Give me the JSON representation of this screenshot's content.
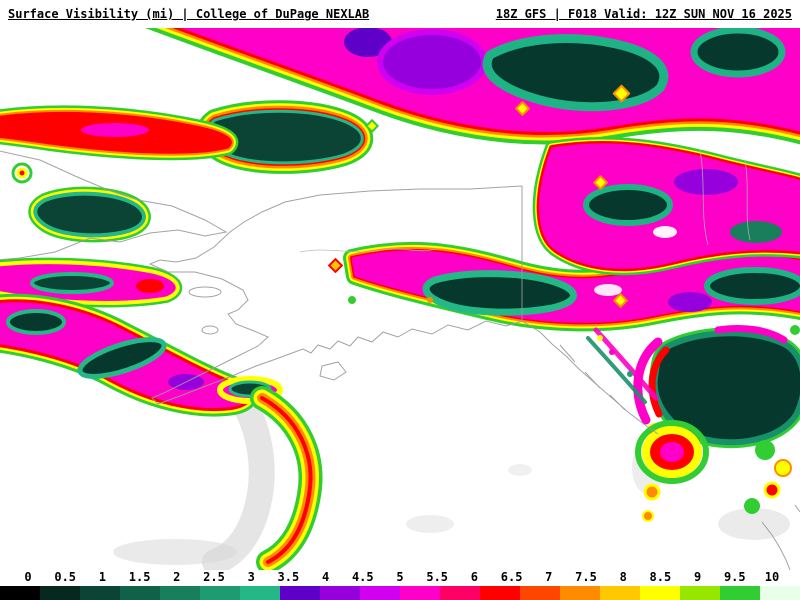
{
  "header": {
    "product_title": "Surface Visibility (mi) | College of DuPage NEXLAB",
    "model_info": "18Z GFS | F018 Valid: 12Z SUN NOV 16 2025"
  },
  "colorbar": {
    "units": "mi",
    "min": 0,
    "max": 10,
    "step": 0.5,
    "tick_labels": [
      "0",
      "0.5",
      "1",
      "1.5",
      "2",
      "2.5",
      "3",
      "3.5",
      "4",
      "4.5",
      "5",
      "5.5",
      "6",
      "6.5",
      "7",
      "7.5",
      "8",
      "8.5",
      "9",
      "9.5",
      "10"
    ],
    "segment_colors": [
      "#000000",
      "#06281f",
      "#0b4434",
      "#116048",
      "#187e5c",
      "#1e9b70",
      "#24b887",
      "#5f00c8",
      "#9600dc",
      "#d200f0",
      "#ff00c8",
      "#ff0064",
      "#ff0000",
      "#ff4600",
      "#ff8c00",
      "#ffc800",
      "#ffff00",
      "#96e600",
      "#32cd32",
      "#e8ffe8"
    ]
  },
  "map": {
    "palette": {
      "clear": "#ffffff",
      "fringe_green": "#32cd32",
      "yellow": "#ffff00",
      "orange": "#ff8c00",
      "red": "#ff0000",
      "magenta": "#ff00c8",
      "purple": "#9600dc",
      "teal": "#1e9b70",
      "dark_teal": "#06382e",
      "coastline_gray": "#999999",
      "terrain_gray": "#d5d5d5"
    }
  }
}
